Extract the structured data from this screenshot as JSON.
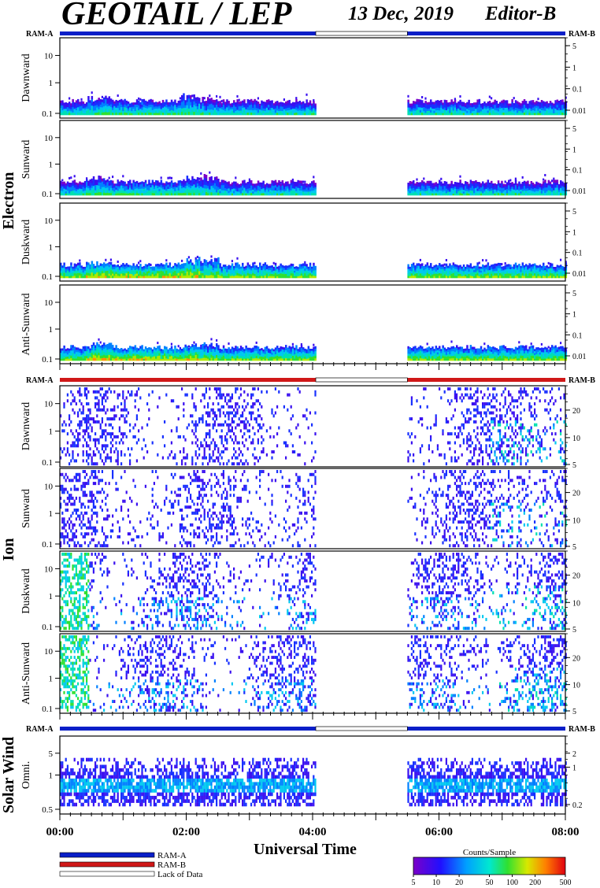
{
  "header": {
    "title": "GEOTAIL / LEP",
    "date": "13 Dec, 2019",
    "editor": "Editor-B"
  },
  "chart_data": {
    "type": "heatmap",
    "xlabel": "Universal Time",
    "x_ticks": [
      "00:00",
      "02:00",
      "04:00",
      "06:00",
      "08:00"
    ],
    "x_range_hours": [
      0,
      8
    ],
    "data_gap_hours": [
      4.05,
      5.5
    ],
    "groups": [
      {
        "name": "Electron",
        "mode_left": "RAM-A",
        "mode_right": "RAM-B",
        "mode_color": "#0a1fc8",
        "panels": [
          {
            "label": "Dawnward",
            "left_ticks": [
              "10",
              "1",
              "0.1"
            ],
            "right_ticks": [
              "5",
              "1",
              "0.1",
              "0.01"
            ]
          },
          {
            "label": "Sunward",
            "left_ticks": [
              "10",
              "1",
              "0.1"
            ],
            "right_ticks": [
              "5",
              "1",
              "0.1",
              "0.01"
            ]
          },
          {
            "label": "Duskward",
            "left_ticks": [
              "10",
              "1",
              "0.1"
            ],
            "right_ticks": [
              "5",
              "1",
              "0.1",
              "0.01"
            ]
          },
          {
            "label": "Anti-Sunward",
            "left_ticks": [
              "10",
              "1",
              "0.1"
            ],
            "right_ticks": [
              "5",
              "1",
              "0.1",
              "0.01"
            ]
          }
        ]
      },
      {
        "name": "Ion",
        "mode_left": "RAM-A",
        "mode_right": "RAM-B",
        "mode_color": "#d01818",
        "panels": [
          {
            "label": "Dawnward",
            "left_ticks": [
              "10",
              "1",
              "0.1"
            ],
            "right_ticks": [
              "20",
              "10",
              "5"
            ]
          },
          {
            "label": "Sunward",
            "left_ticks": [
              "10",
              "1",
              "0.1"
            ],
            "right_ticks": [
              "20",
              "10",
              "5"
            ]
          },
          {
            "label": "Duskward",
            "left_ticks": [
              "10",
              "1",
              "0.1"
            ],
            "right_ticks": [
              "20",
              "10",
              "5"
            ]
          },
          {
            "label": "Anti-Sunward",
            "left_ticks": [
              "10",
              "1",
              "0.1"
            ],
            "right_ticks": [
              "20",
              "10",
              "5"
            ]
          }
        ]
      },
      {
        "name": "Solar Wind",
        "mode_left": "RAM-A",
        "mode_right": "RAM-B",
        "mode_color": "#0a1fc8",
        "panels": [
          {
            "label": "Omni.",
            "left_ticks": [
              "5",
              "1",
              "0.5"
            ],
            "right_ticks": [
              "2",
              "1",
              "0.2"
            ]
          }
        ]
      }
    ],
    "legend": {
      "items": [
        {
          "label": "RAM-A",
          "color": "#0a1fc8"
        },
        {
          "label": "RAM-B",
          "color": "#d01818"
        },
        {
          "label": "Lack of Data",
          "color": "#ffffff"
        }
      ]
    },
    "colorbar": {
      "title": "Counts/Sample",
      "ticks": [
        "5",
        "10",
        "20",
        "50",
        "100",
        "200",
        "500"
      ],
      "scale": "log",
      "range": [
        5,
        500
      ]
    }
  }
}
